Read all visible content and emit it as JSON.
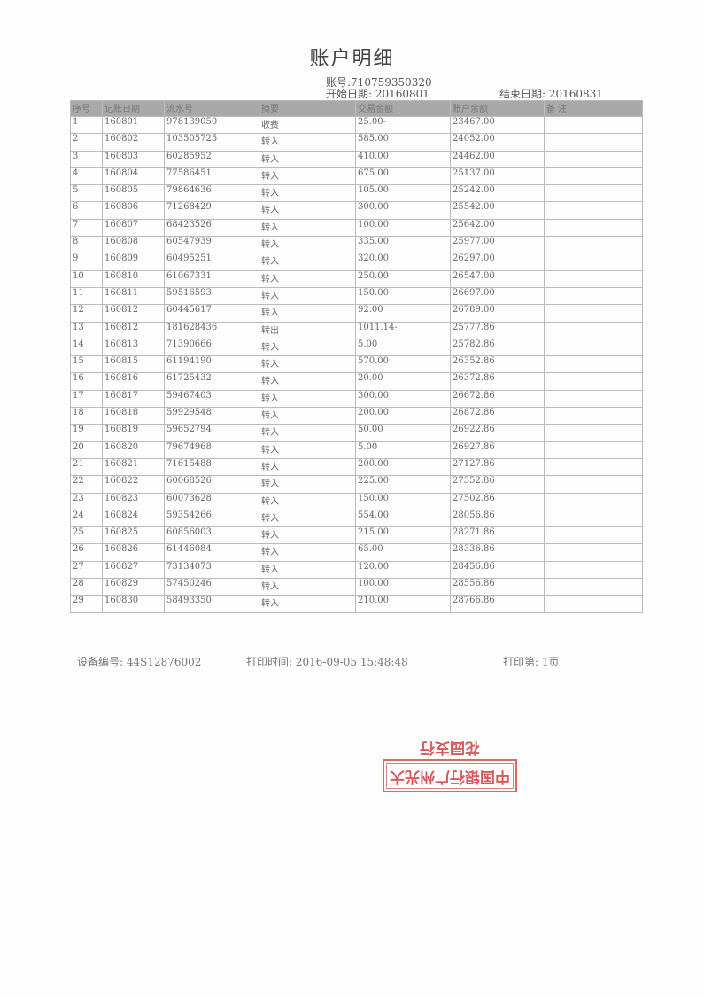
{
  "title": "账户明细",
  "account": "账号:710759350320",
  "start_date": "开始日期: 20160801",
  "end_date": "结束日期: 20160831",
  "columns": [
    "序号",
    "记账日期",
    "流水号",
    "摘要",
    "交易金额",
    "账户余额",
    "备 注"
  ],
  "rows": [
    [
      "1",
      "160801",
      "978139050",
      "收费",
      "25.00-",
      "23467.00",
      ""
    ],
    [
      "2",
      "160802",
      "103505725",
      "转入",
      "585.00",
      "24052.00",
      ""
    ],
    [
      "3",
      "160803",
      "60285952",
      "转入",
      "410.00",
      "24462.00",
      ""
    ],
    [
      "4",
      "160804",
      "77586451",
      "转入",
      "675.00",
      "25137.00",
      ""
    ],
    [
      "5",
      "160805",
      "79864636",
      "转入",
      "105.00",
      "25242.00",
      ""
    ],
    [
      "6",
      "160806",
      "71268429",
      "转入",
      "300.00",
      "25542.00",
      ""
    ],
    [
      "7",
      "160807",
      "68423526",
      "转入",
      "100.00",
      "25642.00",
      ""
    ],
    [
      "8",
      "160808",
      "60547939",
      "转入",
      "335.00",
      "25977.00",
      ""
    ],
    [
      "9",
      "160809",
      "60495251",
      "转入",
      "320.00",
      "26297.00",
      ""
    ],
    [
      "10",
      "160810",
      "61067331",
      "转入",
      "250.00",
      "26547.00",
      ""
    ],
    [
      "11",
      "160811",
      "59516593",
      "转入",
      "150.00",
      "26697.00",
      ""
    ],
    [
      "12",
      "160812",
      "60445617",
      "转入",
      "92.00",
      "26789.00",
      ""
    ],
    [
      "13",
      "160812",
      "181628436",
      "转出",
      "1011.14-",
      "25777.86",
      ""
    ],
    [
      "14",
      "160813",
      "71390666",
      "转入",
      "5.00",
      "25782.86",
      ""
    ],
    [
      "15",
      "160815",
      "61194190",
      "转入",
      "570.00",
      "26352.86",
      ""
    ],
    [
      "16",
      "160816",
      "61725432",
      "转入",
      "20.00",
      "26372.86",
      ""
    ],
    [
      "17",
      "160817",
      "59467403",
      "转入",
      "300.00",
      "26672.86",
      ""
    ],
    [
      "18",
      "160818",
      "59929548",
      "转入",
      "200.00",
      "26872.86",
      ""
    ],
    [
      "19",
      "160819",
      "59652794",
      "转入",
      "50.00",
      "26922.86",
      ""
    ],
    [
      "20",
      "160820",
      "79674968",
      "转入",
      "5.00",
      "26927.86",
      ""
    ],
    [
      "21",
      "160821",
      "71615488",
      "转入",
      "200.00",
      "27127.86",
      ""
    ],
    [
      "22",
      "160822",
      "60068526",
      "转入",
      "225.00",
      "27352.86",
      ""
    ],
    [
      "23",
      "160823",
      "60073628",
      "转入",
      "150.00",
      "27502.86",
      ""
    ],
    [
      "24",
      "160824",
      "59354266",
      "转入",
      "554.00",
      "28056.86",
      ""
    ],
    [
      "25",
      "160825",
      "60856003",
      "转入",
      "215.00",
      "28271.86",
      ""
    ],
    [
      "26",
      "160826",
      "61446084",
      "转入",
      "65.00",
      "28336.86",
      ""
    ],
    [
      "27",
      "160827",
      "73134073",
      "转入",
      "120.00",
      "28456.86",
      ""
    ],
    [
      "28",
      "160829",
      "57450246",
      "转入",
      "100.00",
      "28556.86",
      ""
    ],
    [
      "29",
      "160830",
      "58493350",
      "转入",
      "210.00",
      "28766.86",
      ""
    ]
  ],
  "footer": {
    "device": "设备编号: 44S12876002",
    "print_time": "打印时间: 2016-09-05 15:48:48",
    "page": "打印第: 1页"
  },
  "stamp": {
    "text": "中国银行广州光大花园支行",
    "color": "#d65a5a"
  }
}
